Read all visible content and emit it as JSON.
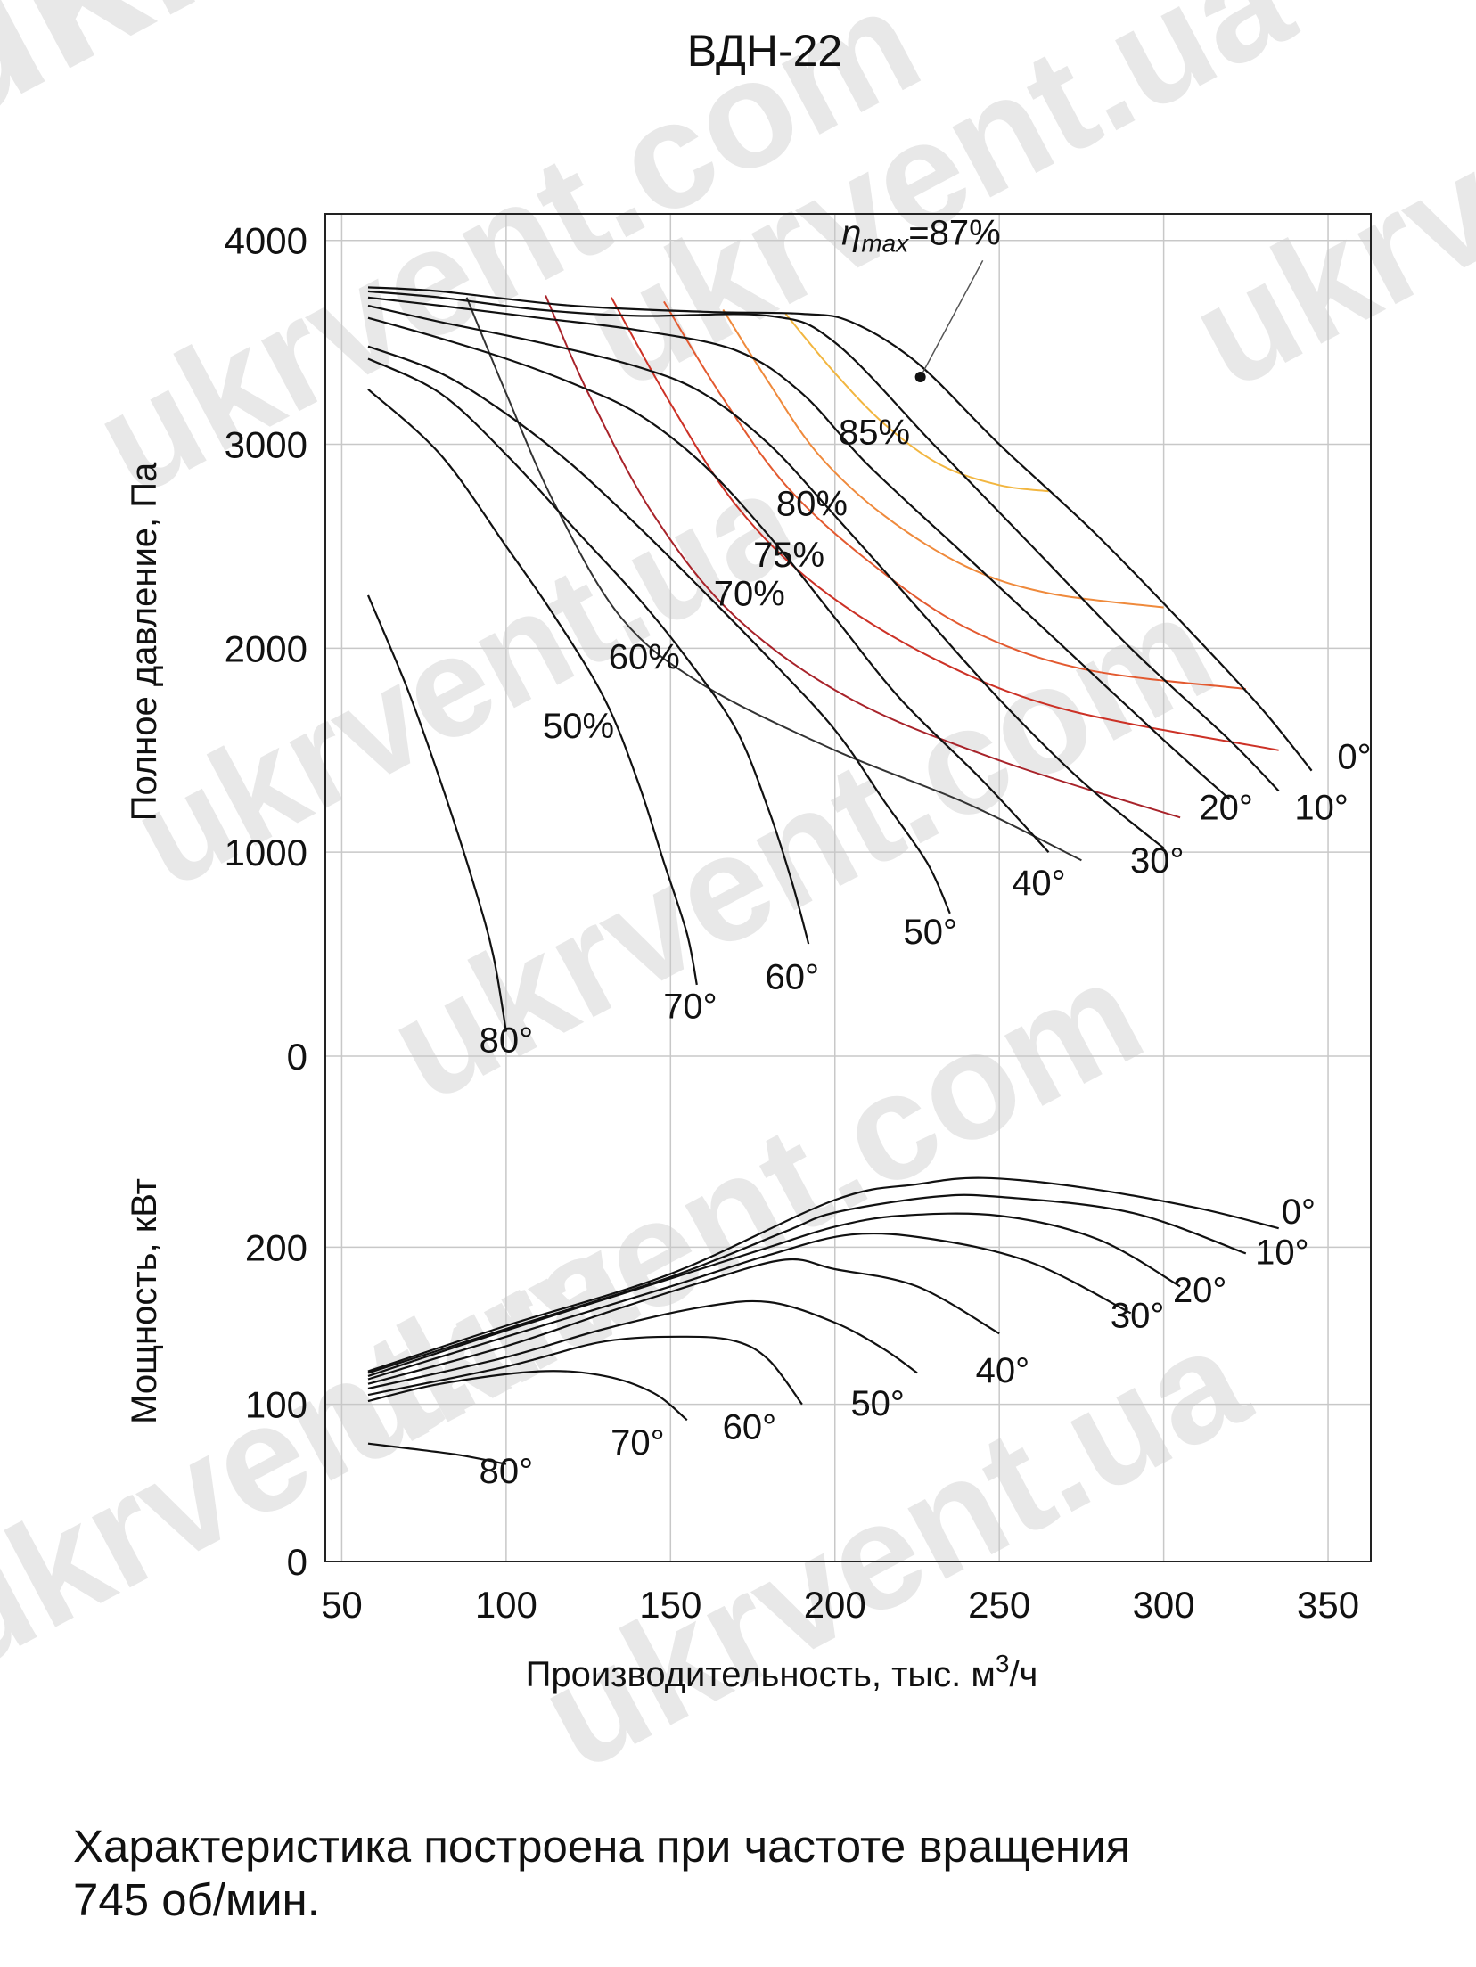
{
  "title": "ВДН-22",
  "caption_lines": [
    "Характеристика построена при частоте вращения",
    "745 об/мин."
  ],
  "watermark_text": "ukrvent.ua",
  "watermark_text_alt": "ukrvent.com",
  "chart_data": {
    "type": "line",
    "title": "ВДН-22",
    "xlabel": "Производительность, тыс. м³/ч",
    "xlabel_parts": [
      "Производительность, тыс. м",
      "3",
      "/ч"
    ],
    "xlim": [
      45,
      363
    ],
    "xticks": [
      "50",
      "100",
      "150",
      "200",
      "250",
      "300",
      "350"
    ],
    "xtick_values": [
      50,
      100,
      150,
      200,
      250,
      300,
      350
    ],
    "grid": true,
    "pressure": {
      "ylabel": "Полное давление, Па",
      "ylim": [
        0,
        4130
      ],
      "yticks": [
        "0",
        "1000",
        "2000",
        "3000",
        "4000"
      ],
      "ytick_values": [
        0,
        1000,
        2000,
        3000,
        4000
      ],
      "series": [
        {
          "name": "0°",
          "label_at": [
            358,
            1410
          ],
          "points": [
            [
              58,
              3770
            ],
            [
              80,
              3750
            ],
            [
              120,
              3680
            ],
            [
              160,
              3650
            ],
            [
              190,
              3640
            ],
            [
              205,
              3600
            ],
            [
              225,
              3400
            ],
            [
              250,
              3000
            ],
            [
              280,
              2550
            ],
            [
              310,
              2050
            ],
            [
              330,
              1700
            ],
            [
              345,
              1400
            ]
          ]
        },
        {
          "name": "10°",
          "label_at": [
            348,
            1160
          ],
          "points": [
            [
              58,
              3750
            ],
            [
              80,
              3720
            ],
            [
              110,
              3660
            ],
            [
              140,
              3630
            ],
            [
              180,
              3630
            ],
            [
              200,
              3500
            ],
            [
              230,
              3000
            ],
            [
              260,
              2500
            ],
            [
              290,
              2000
            ],
            [
              320,
              1550
            ],
            [
              335,
              1300
            ]
          ]
        },
        {
          "name": "20°",
          "label_at": [
            319,
            1160
          ],
          "points": [
            [
              58,
              3720
            ],
            [
              80,
              3680
            ],
            [
              110,
              3620
            ],
            [
              140,
              3560
            ],
            [
              170,
              3460
            ],
            [
              190,
              3250
            ],
            [
              210,
              2900
            ],
            [
              240,
              2450
            ],
            [
              270,
              2000
            ],
            [
              300,
              1550
            ],
            [
              320,
              1260
            ]
          ]
        },
        {
          "name": "30°",
          "label_at": [
            298,
            900
          ],
          "points": [
            [
              58,
              3680
            ],
            [
              80,
              3600
            ],
            [
              110,
              3500
            ],
            [
              140,
              3380
            ],
            [
              160,
              3250
            ],
            [
              180,
              3000
            ],
            [
              200,
              2650
            ],
            [
              225,
              2200
            ],
            [
              250,
              1750
            ],
            [
              275,
              1350
            ],
            [
              300,
              1020
            ]
          ]
        },
        {
          "name": "40°",
          "label_at": [
            262,
            790
          ],
          "points": [
            [
              58,
              3620
            ],
            [
              80,
              3520
            ],
            [
              100,
              3420
            ],
            [
              120,
              3300
            ],
            [
              140,
              3150
            ],
            [
              160,
              2900
            ],
            [
              180,
              2550
            ],
            [
              200,
              2150
            ],
            [
              220,
              1750
            ],
            [
              245,
              1350
            ],
            [
              265,
              1000
            ]
          ]
        },
        {
          "name": "50°",
          "label_at": [
            229,
            550
          ],
          "points": [
            [
              58,
              3480
            ],
            [
              80,
              3350
            ],
            [
              100,
              3150
            ],
            [
              120,
              2900
            ],
            [
              140,
              2600
            ],
            [
              160,
              2280
            ],
            [
              180,
              1950
            ],
            [
              200,
              1600
            ],
            [
              215,
              1250
            ],
            [
              228,
              950
            ],
            [
              235,
              700
            ]
          ]
        },
        {
          "name": "60°",
          "label_at": [
            187,
            330
          ],
          "points": [
            [
              58,
              3420
            ],
            [
              80,
              3250
            ],
            [
              100,
              2950
            ],
            [
              120,
              2600
            ],
            [
              140,
              2250
            ],
            [
              155,
              1950
            ],
            [
              170,
              1600
            ],
            [
              180,
              1200
            ],
            [
              187,
              850
            ],
            [
              192,
              550
            ]
          ]
        },
        {
          "name": "70°",
          "label_at": [
            156,
            185
          ],
          "points": [
            [
              58,
              3270
            ],
            [
              80,
              2950
            ],
            [
              100,
              2500
            ],
            [
              115,
              2150
            ],
            [
              130,
              1750
            ],
            [
              140,
              1350
            ],
            [
              148,
              950
            ],
            [
              155,
              600
            ],
            [
              158,
              350
            ]
          ]
        },
        {
          "name": "80°",
          "label_at": [
            100,
            20
          ],
          "points": [
            [
              58,
              2260
            ],
            [
              70,
              1800
            ],
            [
              80,
              1350
            ],
            [
              90,
              850
            ],
            [
              96,
              500
            ],
            [
              100,
              120
            ]
          ]
        }
      ],
      "efficiency_curves": [
        {
          "name": "85%",
          "color": "#f2b640",
          "label_at": [
            212,
            3000
          ],
          "points": [
            [
              185,
              3640
            ],
            [
              200,
              3350
            ],
            [
              215,
              3100
            ],
            [
              232,
              2900
            ],
            [
              250,
              2800
            ],
            [
              265,
              2770
            ]
          ]
        },
        {
          "name": "80%",
          "color": "#ef8a3c",
          "label_at": [
            193,
            2650
          ],
          "points": [
            [
              166,
              3660
            ],
            [
              180,
              3300
            ],
            [
              195,
              2950
            ],
            [
              215,
              2650
            ],
            [
              240,
              2400
            ],
            [
              265,
              2270
            ],
            [
              300,
              2200
            ]
          ]
        },
        {
          "name": "75%",
          "color": "#e35a30",
          "label_at": [
            186,
            2400
          ],
          "points": [
            [
              148,
              3700
            ],
            [
              165,
              3250
            ],
            [
              185,
              2800
            ],
            [
              210,
              2430
            ],
            [
              240,
              2100
            ],
            [
              275,
              1900
            ],
            [
              325,
              1800
            ]
          ]
        },
        {
          "name": "70%",
          "color": "#cc3126",
          "label_at": [
            174,
            2210
          ],
          "points": [
            [
              132,
              3720
            ],
            [
              150,
              3200
            ],
            [
              170,
              2700
            ],
            [
              195,
              2300
            ],
            [
              230,
              1950
            ],
            [
              270,
              1700
            ],
            [
              335,
              1500
            ]
          ]
        },
        {
          "name": "60%",
          "color": "#a8232a",
          "label_at": [
            142,
            1900
          ],
          "points": [
            [
              112,
              3730
            ],
            [
              125,
              3250
            ],
            [
              145,
              2650
            ],
            [
              170,
              2150
            ],
            [
              205,
              1750
            ],
            [
              250,
              1450
            ],
            [
              305,
              1170
            ]
          ]
        },
        {
          "name": "50%",
          "color": "#333333",
          "label_at": [
            122,
            1560
          ],
          "points": [
            [
              88,
              3720
            ],
            [
              100,
              3250
            ],
            [
              115,
              2700
            ],
            [
              135,
              2150
            ],
            [
              160,
              1820
            ],
            [
              200,
              1500
            ],
            [
              240,
              1240
            ],
            [
              275,
              960
            ]
          ]
        }
      ],
      "annotation": {
        "prefix": "η",
        "subscript": "max",
        "suffix": "=87%",
        "point": [
          226,
          3330
        ],
        "text_at": [
          202,
          3980
        ]
      }
    },
    "power": {
      "ylabel": "Мощность, кВт",
      "ylim": [
        0,
        262
      ],
      "yticks": [
        "0",
        "100",
        "200"
      ],
      "ytick_values": [
        0,
        100,
        200
      ],
      "series": [
        {
          "name": "0°",
          "label_at": [
            341,
            215
          ],
          "points": [
            [
              58,
              121
            ],
            [
              100,
              150
            ],
            [
              150,
              183
            ],
            [
              200,
              230
            ],
            [
              225,
              240
            ],
            [
              245,
              244
            ],
            [
              275,
              238
            ],
            [
              310,
              225
            ],
            [
              335,
              212
            ]
          ]
        },
        {
          "name": "10°",
          "label_at": [
            336,
            189
          ],
          "points": [
            [
              58,
              120
            ],
            [
              100,
              148
            ],
            [
              150,
              181
            ],
            [
              185,
              210
            ],
            [
              200,
              222
            ],
            [
              230,
              232
            ],
            [
              250,
              232
            ],
            [
              290,
              222
            ],
            [
              325,
              196
            ]
          ]
        },
        {
          "name": "20°",
          "label_at": [
            311,
            165
          ],
          "points": [
            [
              58,
              118
            ],
            [
              100,
              147
            ],
            [
              150,
              180
            ],
            [
              180,
              200
            ],
            [
              200,
              213
            ],
            [
              220,
              220
            ],
            [
              250,
              220
            ],
            [
              280,
              205
            ],
            [
              305,
              175
            ]
          ]
        },
        {
          "name": "30°",
          "label_at": [
            292,
            149
          ],
          "points": [
            [
              58,
              116
            ],
            [
              100,
              143
            ],
            [
              150,
              175
            ],
            [
              180,
              195
            ],
            [
              205,
              208
            ],
            [
              230,
              205
            ],
            [
              260,
              190
            ],
            [
              290,
              158
            ]
          ]
        },
        {
          "name": "40°",
          "label_at": [
            251,
            114
          ],
          "points": [
            [
              58,
              113
            ],
            [
              100,
              137
            ],
            [
              130,
              158
            ],
            [
              160,
              178
            ],
            [
              185,
              192
            ],
            [
              200,
              186
            ],
            [
              225,
              175
            ],
            [
              250,
              145
            ]
          ]
        },
        {
          "name": "50°",
          "label_at": [
            213,
            93
          ],
          "points": [
            [
              58,
              110
            ],
            [
              100,
              130
            ],
            [
              130,
              148
            ],
            [
              160,
              162
            ],
            [
              180,
              165
            ],
            [
              200,
              152
            ],
            [
              215,
              135
            ],
            [
              225,
              120
            ]
          ]
        },
        {
          "name": "60°",
          "label_at": [
            174,
            78
          ],
          "points": [
            [
              58,
              106
            ],
            [
              100,
              124
            ],
            [
              130,
              140
            ],
            [
              155,
              143
            ],
            [
              170,
              140
            ],
            [
              180,
              128
            ],
            [
              190,
              100
            ]
          ]
        },
        {
          "name": "70°",
          "label_at": [
            140,
            68
          ],
          "points": [
            [
              58,
              102
            ],
            [
              80,
              113
            ],
            [
              110,
              121
            ],
            [
              130,
              118
            ],
            [
              145,
              107
            ],
            [
              155,
              90
            ]
          ]
        },
        {
          "name": "80°",
          "label_at": [
            100,
            50
          ],
          "points": [
            [
              58,
              75
            ],
            [
              70,
              72
            ],
            [
              85,
              68
            ],
            [
              100,
              62
            ]
          ]
        }
      ]
    }
  }
}
